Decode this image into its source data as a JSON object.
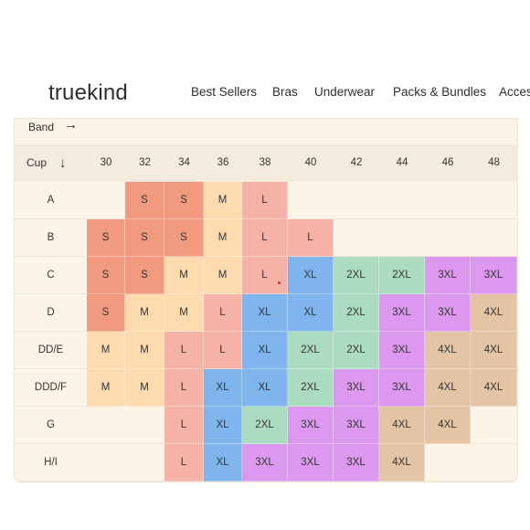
{
  "header": {
    "logo": "truekind",
    "nav": [
      "Best Sellers",
      "Bras",
      "Underwear",
      "Packs & Bundles",
      "Acces"
    ]
  },
  "chart": {
    "band_label": "Band",
    "band_arrow": "→",
    "cup_label": "Cup",
    "cup_arrow": "↓",
    "bands": [
      "30",
      "32",
      "34",
      "36",
      "38",
      "40",
      "42",
      "44",
      "46",
      "48"
    ],
    "cups": [
      "A",
      "B",
      "C",
      "D",
      "DD/E",
      "DDD/F",
      "G",
      "H/I"
    ],
    "sizes": [
      [
        "",
        "S",
        "S",
        "M",
        "L",
        "",
        "",
        "",
        "",
        ""
      ],
      [
        "S",
        "S",
        "S",
        "M",
        "L",
        "L",
        "",
        "",
        "",
        ""
      ],
      [
        "S",
        "S",
        "M",
        "M",
        "L",
        "XL",
        "2XL",
        "2XL",
        "3XL",
        "3XL"
      ],
      [
        "S",
        "M",
        "M",
        "L",
        "XL",
        "XL",
        "2XL",
        "3XL",
        "3XL",
        "4XL"
      ],
      [
        "M",
        "M",
        "L",
        "L",
        "XL",
        "2XL",
        "2XL",
        "3XL",
        "4XL",
        "4XL"
      ],
      [
        "M",
        "M",
        "L",
        "XL",
        "XL",
        "2XL",
        "3XL",
        "3XL",
        "4XL",
        "4XL"
      ],
      [
        "",
        "",
        "L",
        "XL",
        "2XL",
        "3XL",
        "3XL",
        "4XL",
        "4XL",
        ""
      ],
      [
        "",
        "",
        "L",
        "XL",
        "3XL",
        "3XL",
        "3XL",
        "4XL",
        "",
        ""
      ]
    ],
    "colors": {
      "S": "#f29a80",
      "M": "#fddbaf",
      "L": "#f5b3a8",
      "XL": "#7fb5ec",
      "2XL": "#acdcbf",
      "3XL": "#dc98ee",
      "4XL": "#e3c5a6"
    }
  }
}
